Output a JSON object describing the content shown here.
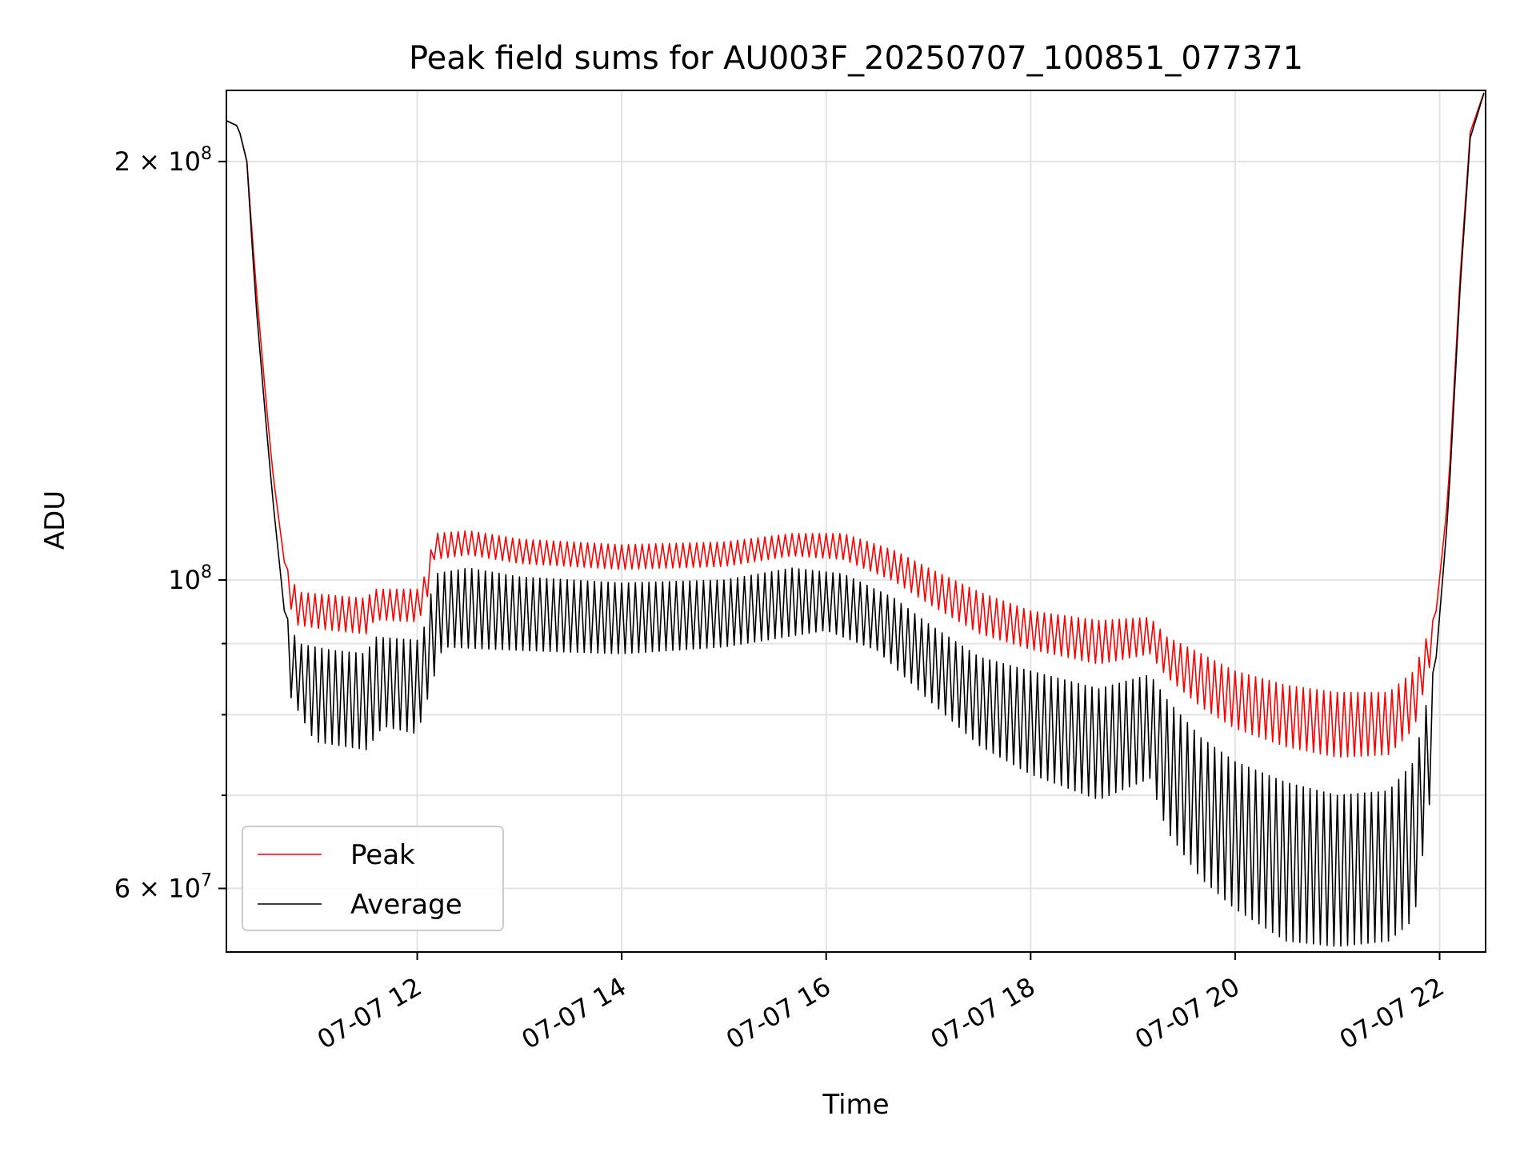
{
  "chart_data": {
    "type": "line",
    "title": "Peak field sums for AU003F_20250707_100851_077371",
    "xlabel": "Time",
    "ylabel": "ADU",
    "x_scale": "time",
    "y_scale": "log",
    "xlim": [
      "2025-07-07 10:08",
      "2025-07-07 22:27"
    ],
    "ylim": [
      54000000,
      225000000
    ],
    "grid": true,
    "legend_position": "lower-left",
    "x_ticks": [
      {
        "time": "2025-07-07 12:00",
        "label": "07-07 12"
      },
      {
        "time": "2025-07-07 14:00",
        "label": "07-07 14"
      },
      {
        "time": "2025-07-07 16:00",
        "label": "07-07 16"
      },
      {
        "time": "2025-07-07 18:00",
        "label": "07-07 18"
      },
      {
        "time": "2025-07-07 20:00",
        "label": "07-07 20"
      },
      {
        "time": "2025-07-07 22:00",
        "label": "07-07 22"
      }
    ],
    "y_ticks_major": [
      {
        "value": 60000000,
        "mantissa": "6",
        "exponent": "7"
      },
      {
        "value": 100000000,
        "mantissa": "",
        "exponent": "8"
      },
      {
        "value": 200000000,
        "mantissa": "2",
        "exponent": "8"
      }
    ],
    "y_ticks_minor": [
      70000000,
      80000000,
      90000000
    ],
    "series": [
      {
        "name": "Peak",
        "color": "#ff0000",
        "points": [
          [
            "2025-07-07 10:08",
            214000000
          ],
          [
            "2025-07-07 10:15",
            212000000
          ],
          [
            "2025-07-07 10:20",
            200000000
          ],
          [
            "2025-07-07 10:25",
            165000000
          ],
          [
            "2025-07-07 10:30",
            140000000
          ],
          [
            "2025-07-07 10:35",
            120000000
          ],
          [
            "2025-07-07 10:42",
            103000000
          ],
          [
            "2025-07-07 10:50",
            98000000
          ],
          [
            "2025-07-07 11:10",
            97500000
          ],
          [
            "2025-07-07 11:30",
            97000000
          ],
          [
            "2025-07-07 11:35",
            98500000
          ],
          [
            "2025-07-07 12:00",
            98500000
          ],
          [
            "2025-07-07 12:05",
            101000000
          ],
          [
            "2025-07-07 12:10",
            108000000
          ],
          [
            "2025-07-07 12:30",
            108500000
          ],
          [
            "2025-07-07 13:00",
            107000000
          ],
          [
            "2025-07-07 14:00",
            106000000
          ],
          [
            "2025-07-07 15:00",
            106500000
          ],
          [
            "2025-07-07 15:40",
            108000000
          ],
          [
            "2025-07-07 16:10",
            108000000
          ],
          [
            "2025-07-07 16:40",
            105000000
          ],
          [
            "2025-07-07 17:00",
            102000000
          ],
          [
            "2025-07-07 17:30",
            98000000
          ],
          [
            "2025-07-07 18:00",
            95000000
          ],
          [
            "2025-07-07 18:40",
            93500000
          ],
          [
            "2025-07-07 19:10",
            94000000
          ],
          [
            "2025-07-07 19:20",
            91000000
          ],
          [
            "2025-07-07 19:40",
            88500000
          ],
          [
            "2025-07-07 20:00",
            86000000
          ],
          [
            "2025-07-07 20:30",
            84000000
          ],
          [
            "2025-07-07 21:00",
            83000000
          ],
          [
            "2025-07-07 21:30",
            83000000
          ],
          [
            "2025-07-07 21:45",
            86000000
          ],
          [
            "2025-07-07 21:58",
            95000000
          ],
          [
            "2025-07-07 22:05",
            115000000
          ],
          [
            "2025-07-07 22:12",
            165000000
          ],
          [
            "2025-07-07 22:18",
            210000000
          ],
          [
            "2025-07-07 22:27",
            226000000
          ]
        ]
      },
      {
        "name": "Average",
        "color": "#000000",
        "points": [
          [
            "2025-07-07 10:08",
            214000000
          ],
          [
            "2025-07-07 10:15",
            212000000
          ],
          [
            "2025-07-07 10:20",
            200000000
          ],
          [
            "2025-07-07 10:25",
            160000000
          ],
          [
            "2025-07-07 10:30",
            135000000
          ],
          [
            "2025-07-07 10:35",
            115000000
          ],
          [
            "2025-07-07 10:42",
            95000000
          ],
          [
            "2025-07-07 10:50",
            90000000
          ],
          [
            "2025-07-07 11:10",
            89000000
          ],
          [
            "2025-07-07 11:30",
            88500000
          ],
          [
            "2025-07-07 11:35",
            91000000
          ],
          [
            "2025-07-07 12:00",
            90500000
          ],
          [
            "2025-07-07 12:05",
            93000000
          ],
          [
            "2025-07-07 12:10",
            101000000
          ],
          [
            "2025-07-07 12:30",
            102000000
          ],
          [
            "2025-07-07 13:00",
            100500000
          ],
          [
            "2025-07-07 14:00",
            99500000
          ],
          [
            "2025-07-07 15:00",
            100000000
          ],
          [
            "2025-07-07 15:40",
            102000000
          ],
          [
            "2025-07-07 16:10",
            101000000
          ],
          [
            "2025-07-07 16:40",
            97000000
          ],
          [
            "2025-07-07 17:00",
            93000000
          ],
          [
            "2025-07-07 17:30",
            88000000
          ],
          [
            "2025-07-07 18:00",
            86000000
          ],
          [
            "2025-07-07 18:40",
            83500000
          ],
          [
            "2025-07-07 19:10",
            85500000
          ],
          [
            "2025-07-07 19:20",
            82000000
          ],
          [
            "2025-07-07 19:40",
            77000000
          ],
          [
            "2025-07-07 20:00",
            74000000
          ],
          [
            "2025-07-07 20:30",
            71500000
          ],
          [
            "2025-07-07 21:00",
            70000000
          ],
          [
            "2025-07-07 21:30",
            70500000
          ],
          [
            "2025-07-07 21:45",
            74000000
          ],
          [
            "2025-07-07 21:58",
            88000000
          ],
          [
            "2025-07-07 22:05",
            112000000
          ],
          [
            "2025-07-07 22:12",
            162000000
          ],
          [
            "2025-07-07 22:18",
            208000000
          ],
          [
            "2025-07-07 22:27",
            226000000
          ]
        ],
        "troughs": [
          [
            "2025-07-07 10:42",
            84000000
          ],
          [
            "2025-07-07 11:00",
            76500000
          ],
          [
            "2025-07-07 11:30",
            75500000
          ],
          [
            "2025-07-07 11:40",
            78500000
          ],
          [
            "2025-07-07 12:00",
            77500000
          ],
          [
            "2025-07-07 12:15",
            89500000
          ],
          [
            "2025-07-07 13:00",
            89000000
          ],
          [
            "2025-07-07 14:00",
            88500000
          ],
          [
            "2025-07-07 15:00",
            89500000
          ],
          [
            "2025-07-07 16:00",
            92000000
          ],
          [
            "2025-07-07 16:30",
            89000000
          ],
          [
            "2025-07-07 17:00",
            82000000
          ],
          [
            "2025-07-07 17:30",
            76000000
          ],
          [
            "2025-07-07 18:00",
            72500000
          ],
          [
            "2025-07-07 18:40",
            69500000
          ],
          [
            "2025-07-07 19:10",
            72000000
          ],
          [
            "2025-07-07 19:20",
            66000000
          ],
          [
            "2025-07-07 19:40",
            61000000
          ],
          [
            "2025-07-07 20:00",
            58000000
          ],
          [
            "2025-07-07 20:30",
            55000000
          ],
          [
            "2025-07-07 21:00",
            54500000
          ],
          [
            "2025-07-07 21:30",
            55000000
          ],
          [
            "2025-07-07 21:45",
            57000000
          ],
          [
            "2025-07-07 21:58",
            75000000
          ]
        ]
      }
    ]
  }
}
